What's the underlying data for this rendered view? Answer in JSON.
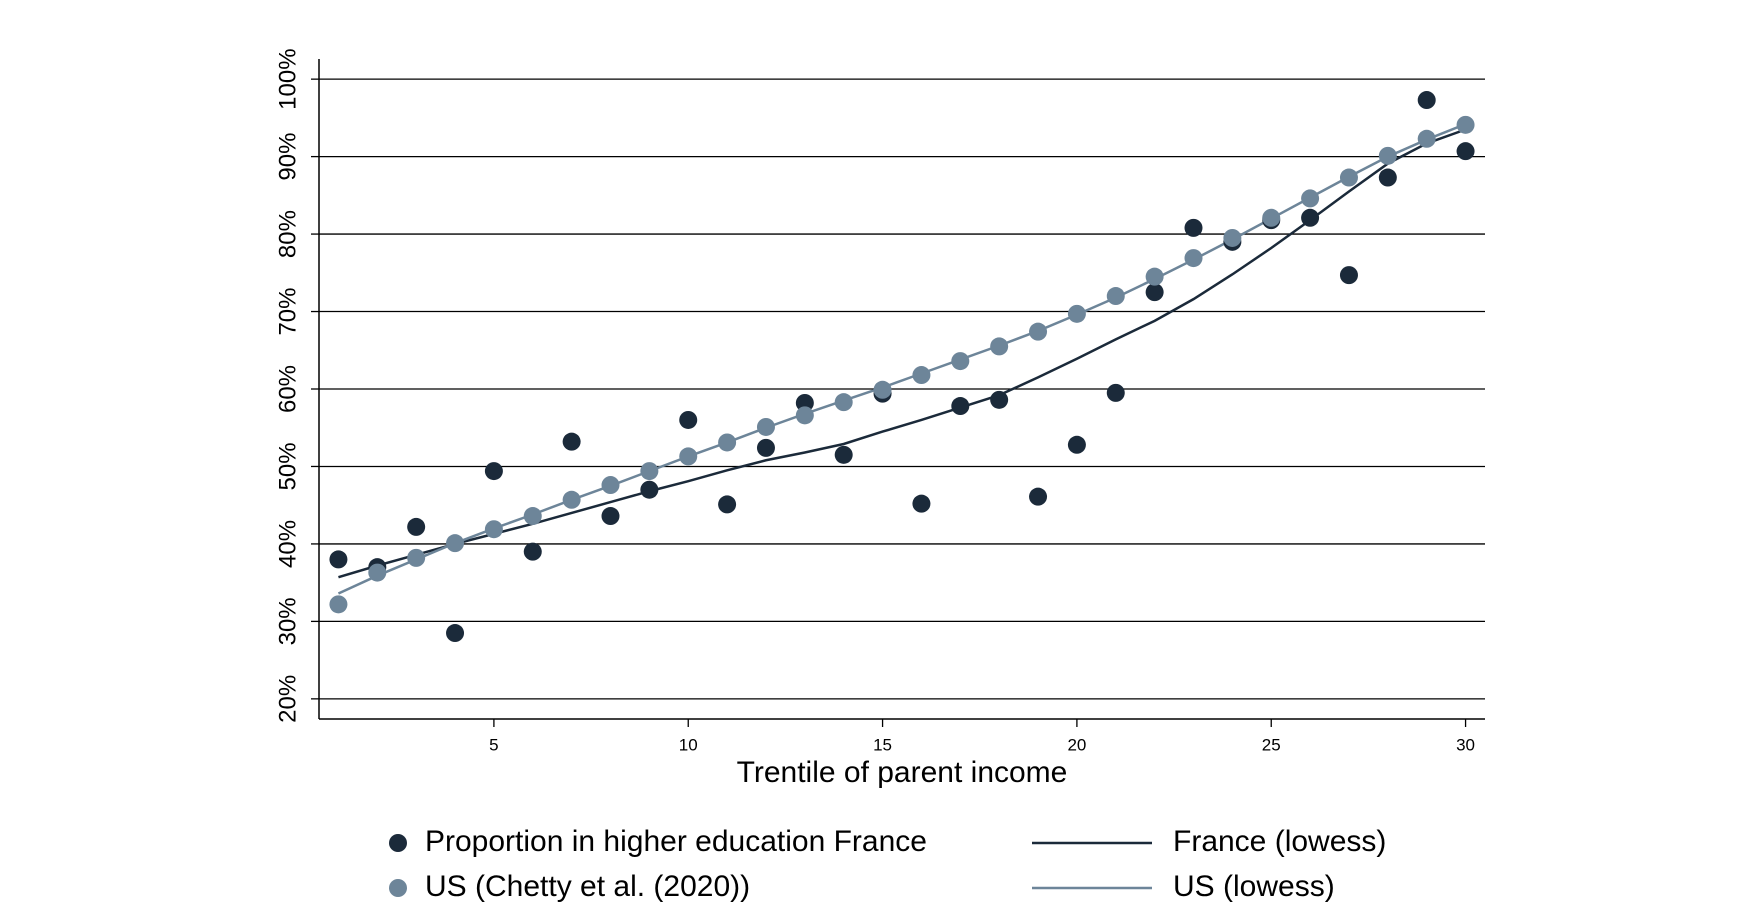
{
  "chart_data": {
    "type": "scatter",
    "x_label": "Trentile of parent income",
    "x": [
      1,
      2,
      3,
      4,
      5,
      6,
      7,
      8,
      9,
      10,
      11,
      12,
      13,
      14,
      15,
      16,
      17,
      18,
      19,
      20,
      21,
      22,
      23,
      24,
      25,
      26,
      27,
      28,
      29,
      30
    ],
    "series": [
      {
        "name": "Proportion in higher education France",
        "mode": "markers",
        "color": "#1b2a3a",
        "values": [
          38.0,
          37.0,
          42.2,
          28.5,
          49.4,
          39.0,
          53.2,
          43.6,
          47.0,
          56.0,
          45.1,
          52.4,
          58.2,
          51.5,
          59.4,
          45.2,
          57.8,
          58.6,
          46.1,
          52.8,
          59.5,
          72.5,
          80.8,
          79.0,
          81.8,
          82.1,
          74.7,
          87.3,
          97.3,
          90.7
        ]
      },
      {
        "name": "France (lowess)",
        "mode": "line",
        "color": "#1b2a3a",
        "values": [
          35.7,
          37.2,
          38.6,
          40.0,
          41.3,
          42.6,
          44.0,
          45.4,
          46.8,
          48.1,
          49.5,
          50.8,
          51.8,
          52.9,
          54.5,
          56.0,
          57.6,
          59.2,
          61.5,
          63.9,
          66.4,
          68.8,
          71.6,
          74.8,
          78.2,
          81.8,
          85.5,
          89.1,
          91.7,
          93.5
        ]
      },
      {
        "name": "US (Chetty et al. (2020))",
        "mode": "markers",
        "color": "#6d8599",
        "values": [
          32.2,
          36.3,
          38.2,
          40.1,
          41.9,
          43.6,
          45.7,
          47.6,
          49.4,
          51.3,
          53.1,
          55.1,
          56.6,
          58.3,
          59.9,
          61.8,
          63.6,
          65.5,
          67.4,
          69.7,
          72.0,
          74.5,
          76.9,
          79.5,
          82.1,
          84.6,
          87.3,
          90.1,
          92.3,
          94.1
        ]
      },
      {
        "name": "US (lowess)",
        "mode": "line",
        "color": "#6d8599",
        "values": [
          33.6,
          35.9,
          38.0,
          40.1,
          42.0,
          43.8,
          45.7,
          47.5,
          49.4,
          51.3,
          53.1,
          55.0,
          56.8,
          58.5,
          60.2,
          62.0,
          63.8,
          65.6,
          67.5,
          69.6,
          71.8,
          74.2,
          76.7,
          79.3,
          82.0,
          84.7,
          87.4,
          90.0,
          92.2,
          94.2
        ]
      }
    ],
    "xlim": [
      0.5,
      30.5
    ],
    "xticks": [
      5,
      10,
      15,
      20,
      25,
      30
    ],
    "ylim": [
      17.4,
      102.6
    ],
    "yticks": [
      {
        "value": 20,
        "label": "20%"
      },
      {
        "value": 30,
        "label": "30%"
      },
      {
        "value": 40,
        "label": "40%"
      },
      {
        "value": 50,
        "label": "50%"
      },
      {
        "value": 60,
        "label": "60%"
      },
      {
        "value": 70,
        "label": "70%"
      },
      {
        "value": 80,
        "label": "80%"
      },
      {
        "value": 90,
        "label": "90%"
      },
      {
        "value": 100,
        "label": "100%"
      }
    ],
    "grid": true
  }
}
